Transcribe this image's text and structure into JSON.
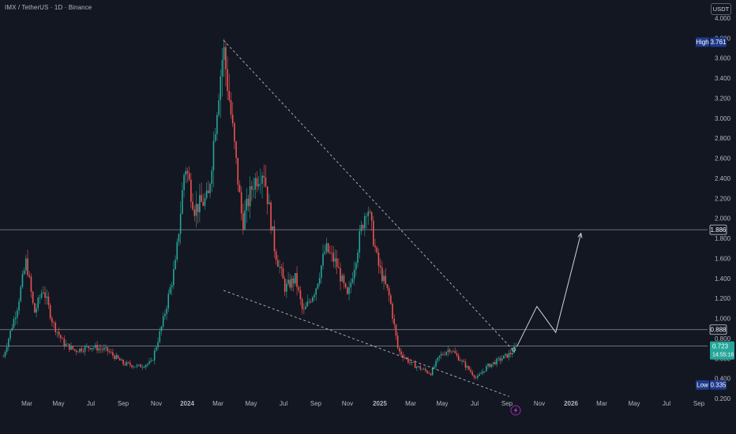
{
  "header": {
    "symbol_title": "IMX / TetherUS · 1D · Binance",
    "currency_badge": "USDT"
  },
  "colors": {
    "background": "#131722",
    "up_candle": "#26a69a",
    "down_candle": "#ef5350",
    "axis_text": "#b2b5be",
    "level_line": "#b2b5be",
    "current_price_badge": "#26a69a",
    "high_low_badge": "#1e3a8a"
  },
  "chart_data": {
    "type": "candlestick",
    "symbol": "IMX / TetherUS",
    "interval": "1D",
    "exchange": "Binance",
    "y_ticks": [
      "4.000",
      "3.800",
      "3.600",
      "3.400",
      "3.200",
      "3.000",
      "2.800",
      "2.600",
      "2.400",
      "2.200",
      "2.000",
      "1.800",
      "1.600",
      "1.400",
      "1.200",
      "1.000",
      "0.800",
      "0.600",
      "0.400",
      "0.200"
    ],
    "x_ticks": [
      "Mar",
      "May",
      "Jul",
      "Sep",
      "Nov",
      "2024",
      "Mar",
      "May",
      "Jul",
      "Sep",
      "Nov",
      "2025",
      "Mar",
      "May",
      "Jul",
      "Sep",
      "Nov",
      "2026",
      "Mar",
      "May",
      "Jul",
      "Sep"
    ],
    "ylim": [
      0.2,
      4.0
    ],
    "price_path": [
      [
        "2023-01-15",
        0.62
      ],
      [
        "2023-02-10",
        1.1
      ],
      [
        "2023-02-28",
        1.58
      ],
      [
        "2023-03-15",
        1.05
      ],
      [
        "2023-04-01",
        1.3
      ],
      [
        "2023-04-20",
        0.95
      ],
      [
        "2023-05-10",
        0.75
      ],
      [
        "2023-06-01",
        0.68
      ],
      [
        "2023-07-01",
        0.72
      ],
      [
        "2023-08-01",
        0.68
      ],
      [
        "2023-09-01",
        0.55
      ],
      [
        "2023-10-01",
        0.52
      ],
      [
        "2023-10-25",
        0.56
      ],
      [
        "2023-11-15",
        0.95
      ],
      [
        "2023-12-10",
        1.55
      ],
      [
        "2023-12-28",
        2.55
      ],
      [
        "2024-01-15",
        2.1
      ],
      [
        "2024-02-10",
        2.2
      ],
      [
        "2024-02-28",
        3.2
      ],
      [
        "2024-03-10",
        3.7
      ],
      [
        "2024-03-25",
        3.0
      ],
      [
        "2024-04-15",
        1.95
      ],
      [
        "2024-05-05",
        2.35
      ],
      [
        "2024-05-25",
        2.5
      ],
      [
        "2024-06-15",
        1.7
      ],
      [
        "2024-07-05",
        1.3
      ],
      [
        "2024-07-25",
        1.4
      ],
      [
        "2024-08-08",
        1.05
      ],
      [
        "2024-09-01",
        1.3
      ],
      [
        "2024-09-20",
        1.7
      ],
      [
        "2024-10-10",
        1.55
      ],
      [
        "2024-11-01",
        1.2
      ],
      [
        "2024-11-25",
        1.85
      ],
      [
        "2024-12-08",
        2.15
      ],
      [
        "2024-12-28",
        1.55
      ],
      [
        "2025-01-20",
        1.2
      ],
      [
        "2025-02-05",
        0.68
      ],
      [
        "2025-03-01",
        0.55
      ],
      [
        "2025-04-08",
        0.45
      ],
      [
        "2025-04-25",
        0.62
      ],
      [
        "2025-05-15",
        0.7
      ],
      [
        "2025-06-10",
        0.55
      ],
      [
        "2025-07-05",
        0.4
      ],
      [
        "2025-07-25",
        0.52
      ],
      [
        "2025-08-15",
        0.58
      ],
      [
        "2025-09-08",
        0.65
      ],
      [
        "2025-09-20",
        0.72
      ]
    ],
    "annotations": {
      "horizontal_levels": [
        {
          "price": 1.886,
          "label": "1.886"
        },
        {
          "price": 0.888,
          "label": "0.888"
        },
        {
          "price": 0.723,
          "label": ""
        }
      ],
      "falling_wedge": {
        "upper": [
          [
            "2024-03-10",
            3.78
          ],
          [
            "2025-09-15",
            0.67
          ]
        ],
        "lower": [
          [
            "2024-03-10",
            1.28
          ],
          [
            "2025-09-05",
            0.22
          ]
        ]
      },
      "projection_path": [
        [
          "2025-09-20",
          0.72
        ],
        [
          "2025-10-28",
          1.12
        ],
        [
          "2025-12-03",
          0.86
        ],
        [
          "2026-01-20",
          1.85
        ]
      ]
    },
    "badges": {
      "high": {
        "label": "High",
        "value": "3.761"
      },
      "low": {
        "label": "Low",
        "value": "0.335"
      },
      "current": {
        "value": "0.723",
        "countdown": "14:55:16"
      }
    }
  }
}
